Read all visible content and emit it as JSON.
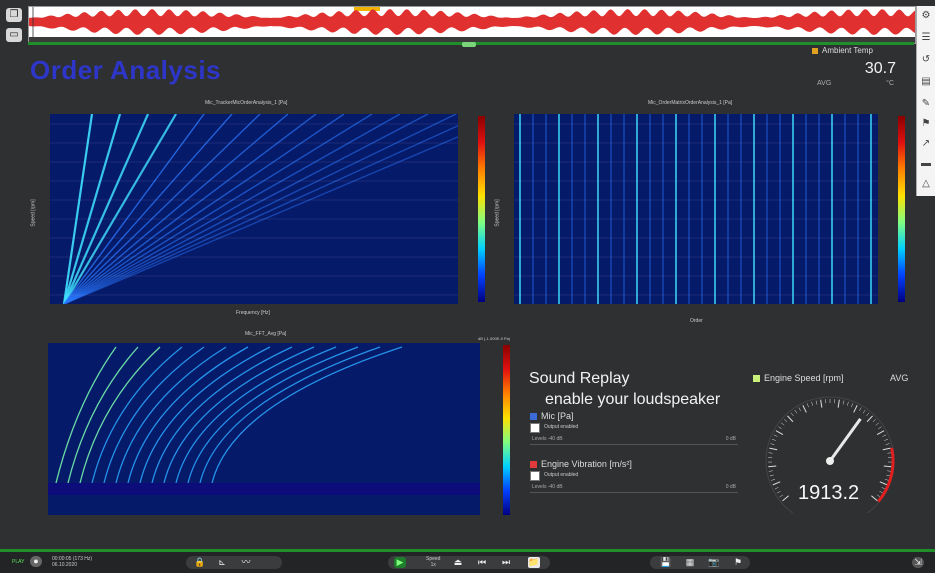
{
  "app": {
    "title": "Order Analysis",
    "ambient": {
      "label": "Ambient Temp",
      "value": "30.7",
      "avg": "AVG",
      "unit": "°C"
    }
  },
  "plots": {
    "p1": {
      "title": "Mic_TrackerMicOrderAnalysis_1 [Pa]",
      "xlabel": "Frequency [Hz]",
      "ylabel": "Speed [rpm]"
    },
    "p2": {
      "title": "Mic_OrderMatrixOrderAnalysis_1 [Pa]",
      "xlabel": "Order",
      "ylabel": "Speed [rpm]"
    },
    "p3": {
      "title": "Mic_FFT_Avg [Pa]",
      "cbar_label": "dB (-1.000E-9 Pa)"
    }
  },
  "sound_replay": {
    "title": "Sound Replay",
    "subtitle": "enable your loudspeaker",
    "channels": [
      {
        "name": "Mic [Pa]",
        "color": "#3a6bd9",
        "output": "Output enabled",
        "level_label": "Levels -40 dB",
        "db": "0 dB"
      },
      {
        "name": "Engine Vibration [m/s²]",
        "color": "#e03a3a",
        "output": "Output enabled",
        "level_label": "Levels -40 dB",
        "db": "0 dB"
      }
    ]
  },
  "gauge": {
    "label": "Engine Speed [rpm]",
    "avg": "AVG",
    "value": "1913.2",
    "reading": 1913.2,
    "min": 0,
    "max": 3000
  },
  "statusbar": {
    "play_label": "PLAY",
    "clock_line1": "00:00:05 (173 Hz)",
    "clock_line2": "06.10.2020",
    "speed_line1": "Speed",
    "speed_line2": "1x"
  },
  "icons": {
    "left": [
      "layers-icon",
      "window-icon"
    ],
    "right": [
      "gear-icon",
      "list-icon",
      "history-icon",
      "report-icon",
      "tag-icon",
      "flag-icon",
      "export-icon",
      "monitor-icon",
      "triangle-icon"
    ],
    "bottom_left": [
      "lock-icon",
      "cursor-icon",
      "curve-icon"
    ],
    "bottom_center": [
      "play-icon",
      "eject-icon",
      "skip-back-icon",
      "skip-forward-icon",
      "folder-icon"
    ],
    "bottom_right": [
      "save-icon",
      "grid-icon",
      "camera-icon",
      "flag-icon"
    ]
  },
  "colors": {
    "accent": "#2e36c9",
    "green": "#1f8f2a",
    "needle": "#e8e8e8"
  }
}
